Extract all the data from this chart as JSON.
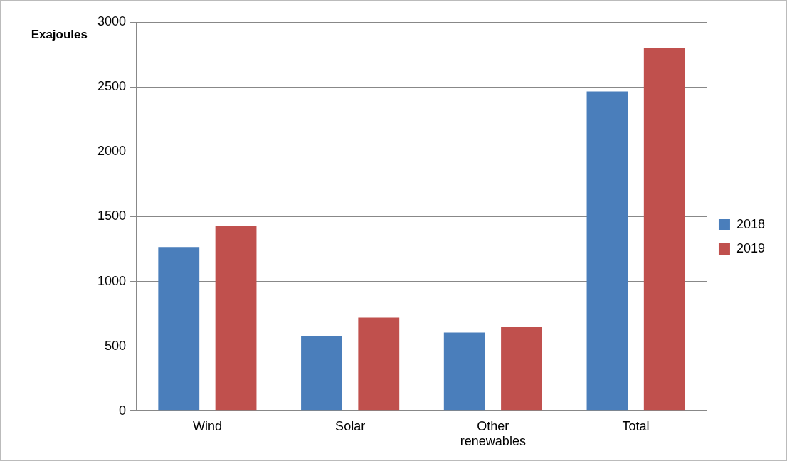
{
  "chart_data": {
    "type": "bar",
    "ylabel": "Exajoules",
    "categories": [
      "Wind",
      "Solar",
      "Other renewables",
      "Total"
    ],
    "series": [
      {
        "name": "2018",
        "color": "#4a7ebb",
        "values": [
          1265,
          580,
          605,
          2465
        ]
      },
      {
        "name": "2019",
        "color": "#c0504d",
        "values": [
          1425,
          720,
          650,
          2800
        ]
      }
    ],
    "ylim": [
      0,
      3000
    ],
    "yticks": [
      0,
      500,
      1000,
      1500,
      2000,
      2500,
      3000
    ],
    "grid": "y",
    "legend": "right"
  }
}
